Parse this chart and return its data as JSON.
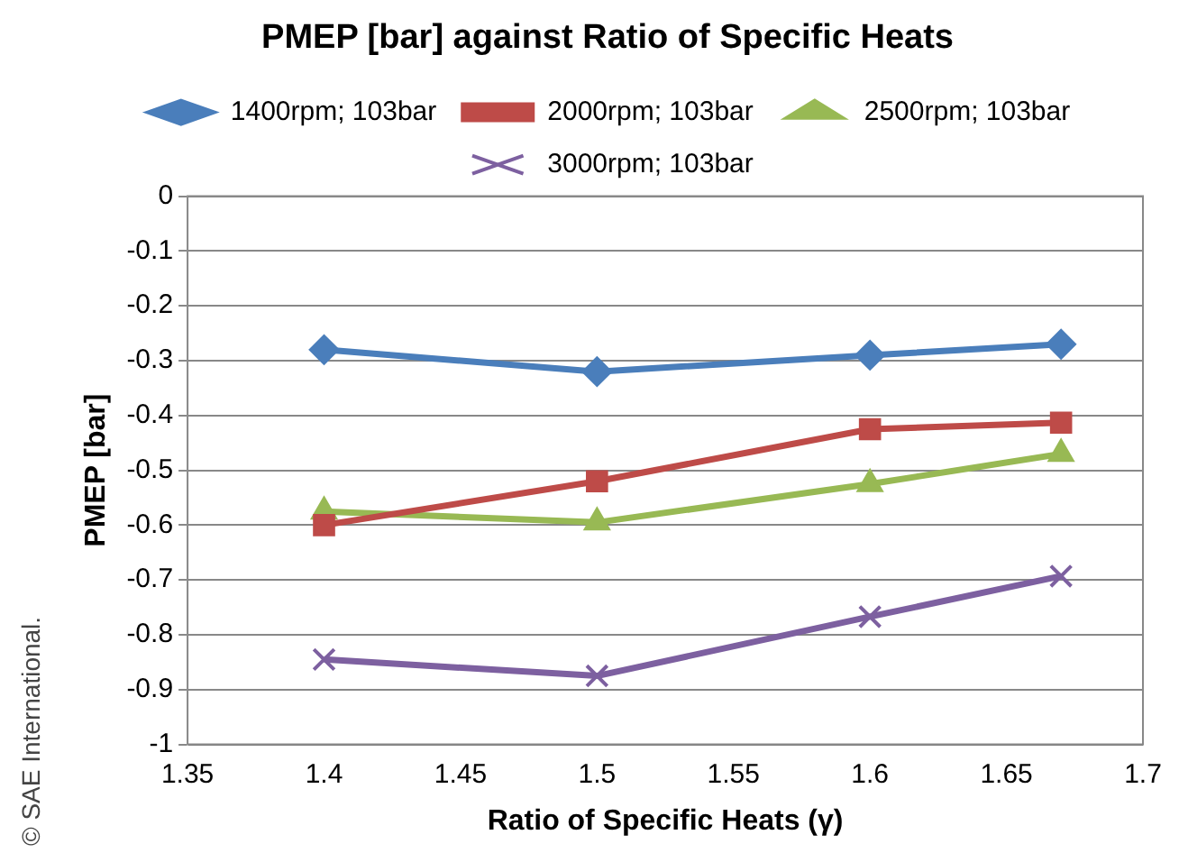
{
  "chart_data": {
    "type": "line",
    "title": "PMEP [bar] against Ratio of Specific Heats",
    "xlabel": "Ratio of Specific Heats (γ)",
    "ylabel": "PMEP [bar]",
    "annotations": [
      "© SAE International."
    ],
    "x": [
      1.4,
      1.5,
      1.6,
      1.67
    ],
    "series": [
      {
        "name": "1400rpm; 103bar",
        "color": "#4a7ebb",
        "marker": "diamond",
        "values": [
          -0.28,
          -0.32,
          -0.29,
          -0.27
        ]
      },
      {
        "name": "2000rpm; 103bar",
        "color": "#be4b48",
        "marker": "square",
        "values": [
          -0.6,
          -0.52,
          -0.425,
          -0.413
        ]
      },
      {
        "name": "2500rpm; 103bar",
        "color": "#98b954",
        "marker": "triangle",
        "values": [
          -0.575,
          -0.595,
          -0.525,
          -0.47
        ]
      },
      {
        "name": "3000rpm; 103bar",
        "color": "#7d60a0",
        "marker": "cross",
        "values": [
          -0.845,
          -0.875,
          -0.767,
          -0.693
        ]
      }
    ],
    "xlim": [
      1.35,
      1.7
    ],
    "xticks": [
      1.35,
      1.4,
      1.45,
      1.5,
      1.55,
      1.6,
      1.65,
      1.7
    ],
    "ylim": [
      -1,
      0
    ],
    "yticks": [
      0,
      -0.1,
      -0.2,
      -0.3,
      -0.4,
      -0.5,
      -0.6,
      -0.7,
      -0.8,
      -0.9,
      -1
    ],
    "grid": "y",
    "legend": "top",
    "line_style": "solid"
  }
}
